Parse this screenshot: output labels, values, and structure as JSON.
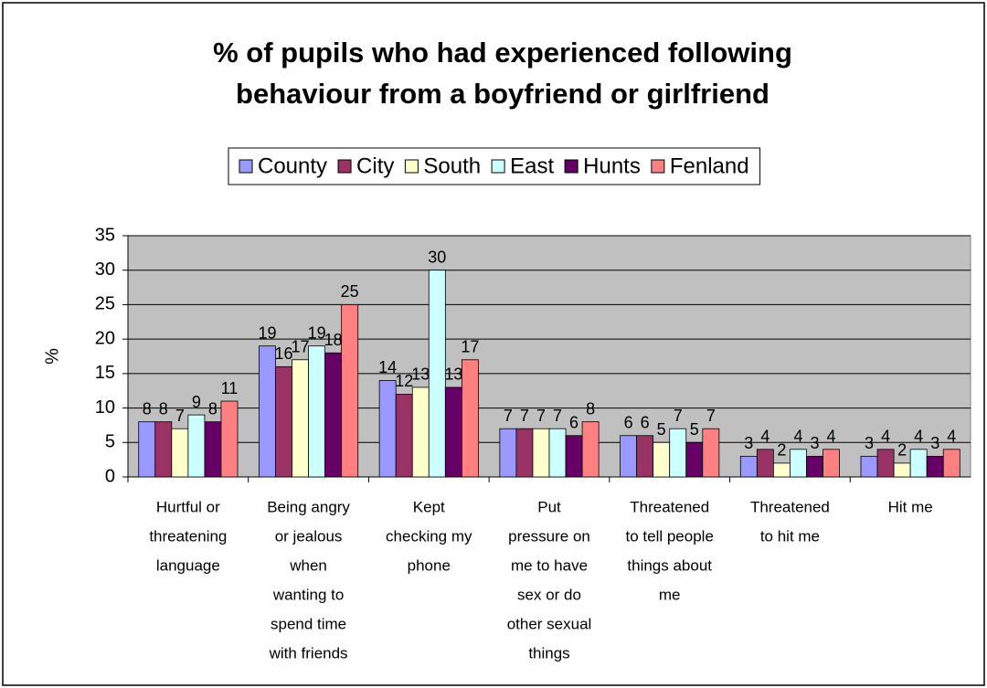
{
  "chart_data": {
    "type": "bar",
    "title": [
      "% of pupils who had experienced following",
      "behaviour from a boyfriend or girlfriend"
    ],
    "y_label": "%",
    "categories": [
      [
        "Hurtful or",
        "threatening",
        "language"
      ],
      [
        "Being angry",
        "or jealous",
        "when",
        "wanting to",
        "spend time",
        "with friends"
      ],
      [
        "Kept",
        "checking my",
        "phone"
      ],
      [
        "Put",
        "pressure on",
        "me to have",
        "sex or do",
        "other sexual",
        "things"
      ],
      [
        "Threatened",
        "to tell people",
        "things about",
        "me"
      ],
      [
        "Threatened",
        "to hit me"
      ],
      [
        "Hit me"
      ]
    ],
    "series": [
      {
        "name": "County",
        "color": "#9999ff",
        "values": [
          8,
          19,
          14,
          7,
          6,
          3,
          3
        ]
      },
      {
        "name": "City",
        "color": "#993366",
        "values": [
          8,
          16,
          12,
          7,
          6,
          4,
          4
        ]
      },
      {
        "name": "South",
        "color": "#ffffcc",
        "values": [
          7,
          17,
          13,
          7,
          5,
          2,
          2
        ]
      },
      {
        "name": "East",
        "color": "#ccffff",
        "values": [
          9,
          19,
          30,
          7,
          7,
          4,
          4
        ]
      },
      {
        "name": "Hunts",
        "color": "#660066",
        "values": [
          8,
          18,
          13,
          6,
          5,
          3,
          3
        ]
      },
      {
        "name": "Fenland",
        "color": "#ff8080",
        "values": [
          11,
          25,
          17,
          8,
          7,
          4,
          4
        ]
      }
    ],
    "ylim": [
      0,
      35
    ],
    "yticks": [
      0,
      5,
      10,
      15,
      20,
      25,
      30,
      35
    ],
    "grid": true,
    "legend": "top"
  }
}
